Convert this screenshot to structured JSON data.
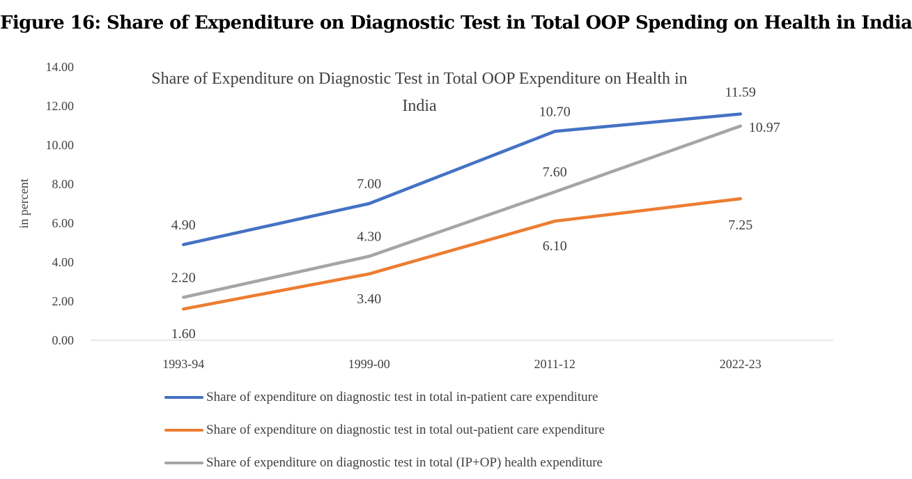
{
  "figure": {
    "title": "Figure 16: Share of Expenditure on Diagnostic Test in Total OOP Spending on Health in India"
  },
  "chart_data": {
    "type": "line",
    "title": "Share of Expenditure on Diagnostic Test in Total OOP Expenditure on Health in India",
    "title_lines": [
      "Share of Expenditure on Diagnostic Test in Total OOP Expenditure on Health in",
      "India"
    ],
    "ylabel": "in percent",
    "xlabel": "",
    "categories": [
      "1993-94",
      "1999-00",
      "2011-12",
      "2022-23"
    ],
    "ylim": [
      0,
      14
    ],
    "yticks": [
      "0.00",
      "2.00",
      "4.00",
      "6.00",
      "8.00",
      "10.00",
      "12.00",
      "14.00"
    ],
    "grid": false,
    "legend_position": "bottom",
    "series": [
      {
        "name": "Share of expenditure on diagnostic test in total in-patient care expenditure",
        "color": "#4472C4",
        "values": [
          4.9,
          7.0,
          10.7,
          11.59
        ],
        "labels": [
          "4.90",
          "7.00",
          "10.70",
          "11.59"
        ],
        "label_position": "above"
      },
      {
        "name": "Share of expenditure on diagnostic test in total out-patient care expenditure",
        "color": "#ED7D31",
        "values": [
          1.6,
          3.4,
          6.1,
          7.25
        ],
        "labels": [
          "1.60",
          "3.40",
          "6.10",
          "7.25"
        ],
        "label_position": "below"
      },
      {
        "name": "Share of expenditure on diagnostic test in total (IP+OP) health expenditure",
        "color": "#A5A5A5",
        "values": [
          2.2,
          4.3,
          7.6,
          10.97
        ],
        "labels": [
          "2.20",
          "4.30",
          "7.60",
          "10.97"
        ],
        "label_position": "above"
      }
    ]
  }
}
